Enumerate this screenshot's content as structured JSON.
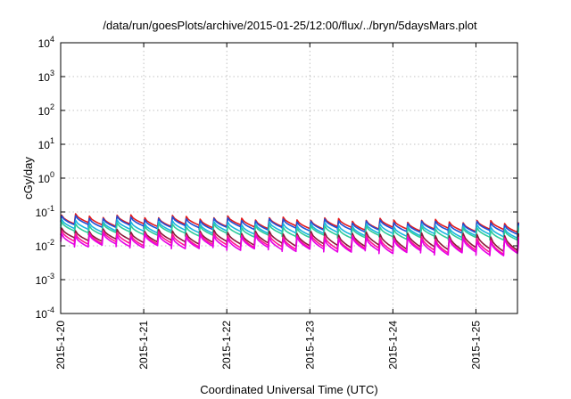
{
  "chart_data": {
    "type": "line",
    "title": "/data/run/goesPlots/archive/2015-01-25/12:00/flux/../bryn/5daysMars.plot",
    "xlabel": "Coordinated Universal Time (UTC)",
    "ylabel": "cGy/day",
    "yscale": "log",
    "ylim": [
      0.0001,
      10000
    ],
    "xlim": [
      "2015-01-20T00:00",
      "2015-01-25T12:00"
    ],
    "grid": true,
    "y_ticks": [
      {
        "value": 0.0001,
        "base": "10",
        "exp": "-4"
      },
      {
        "value": 0.001,
        "base": "10",
        "exp": "-3"
      },
      {
        "value": 0.01,
        "base": "10",
        "exp": "-2"
      },
      {
        "value": 0.1,
        "base": "10",
        "exp": "-1"
      },
      {
        "value": 1,
        "base": "10",
        "exp": "0"
      },
      {
        "value": 10,
        "base": "10",
        "exp": "1"
      },
      {
        "value": 100,
        "base": "10",
        "exp": "2"
      },
      {
        "value": 1000,
        "base": "10",
        "exp": "3"
      },
      {
        "value": 10000,
        "base": "10",
        "exp": "4"
      }
    ],
    "x_ticks": [
      {
        "value": "2015-01-20T00:00",
        "label": "2015-1-20"
      },
      {
        "value": "2015-01-21T00:00",
        "label": "2015-1-21"
      },
      {
        "value": "2015-01-22T00:00",
        "label": "2015-1-22"
      },
      {
        "value": "2015-01-23T00:00",
        "label": "2015-1-23"
      },
      {
        "value": "2015-01-24T00:00",
        "label": "2015-1-24"
      },
      {
        "value": "2015-01-25T00:00",
        "label": "2015-1-25"
      }
    ],
    "series": [
      {
        "color": "#e41a1c",
        "peak_start": 0.08,
        "peak_end": 0.05,
        "trough_start": 0.045,
        "trough_end": 0.028
      },
      {
        "color": "#1f4fd6",
        "peak_start": 0.072,
        "peak_end": 0.045,
        "trough_start": 0.04,
        "trough_end": 0.025
      },
      {
        "color": "#19b5e0",
        "peak_start": 0.055,
        "peak_end": 0.036,
        "trough_start": 0.03,
        "trough_end": 0.019
      },
      {
        "color": "#2ecc9a",
        "peak_start": 0.045,
        "peak_end": 0.03,
        "trough_start": 0.025,
        "trough_end": 0.016
      },
      {
        "color": "#8b1a3a",
        "peak_start": 0.03,
        "peak_end": 0.02,
        "trough_start": 0.016,
        "trough_end": 0.0075
      },
      {
        "color": "#ff1493",
        "peak_start": 0.026,
        "peak_end": 0.016,
        "trough_start": 0.013,
        "trough_end": 0.0062
      },
      {
        "color": "#e600e6",
        "peak_start": 0.022,
        "peak_end": 0.014,
        "trough_start": 0.011,
        "trough_end": 0.0055
      }
    ],
    "pulse_times_hours": [
      0,
      4,
      8,
      12,
      16,
      20,
      24,
      28,
      32,
      36,
      40,
      44,
      48,
      52,
      56,
      60,
      64,
      68,
      72,
      76,
      80,
      84,
      88,
      92,
      96,
      100,
      104,
      108,
      112,
      116,
      120,
      124,
      128,
      132
    ]
  }
}
